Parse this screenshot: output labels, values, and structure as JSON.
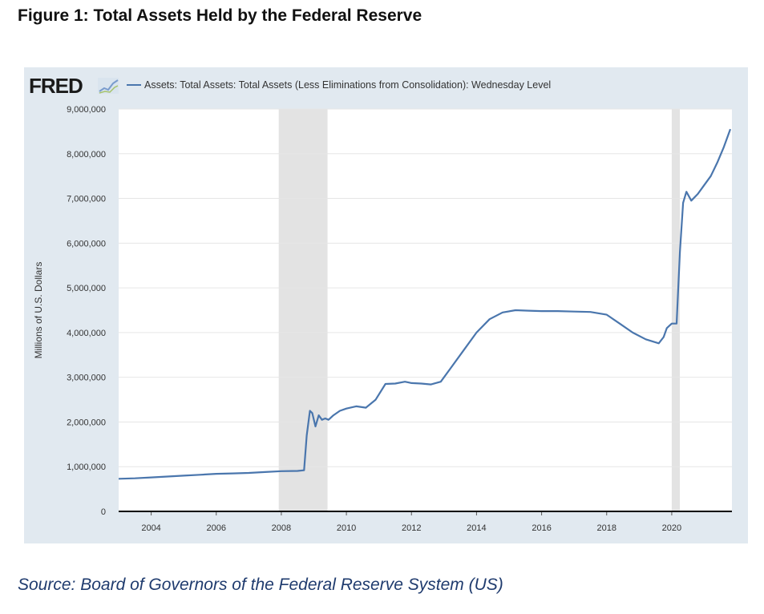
{
  "header": {
    "title": "Figure 1: Total Assets Held by the Federal Reserve"
  },
  "footer": {
    "source": "Source: Board of Governors of the Federal Reserve System (US)"
  },
  "logo": {
    "text": "FRED",
    "icon": "fred-graph-icon"
  },
  "colors": {
    "line": "#4a76ad",
    "panel": "#e1e9f0",
    "plot": "#ffffff",
    "recession": "#e3e3e3",
    "grid": "#e6e6e6",
    "text": "#333333"
  },
  "chart_data": {
    "type": "line",
    "title": "",
    "xlabel": "",
    "ylabel": "Millions of U.S. Dollars",
    "xlim": [
      2003.0,
      2021.85
    ],
    "ylim": [
      0,
      9000000
    ],
    "grid": true,
    "legend_position": "top-left",
    "x_ticks": [
      "2004",
      "2006",
      "2008",
      "2010",
      "2012",
      "2014",
      "2016",
      "2018",
      "2020"
    ],
    "y_ticks": [
      "0",
      "1,000,000",
      "2,000,000",
      "3,000,000",
      "4,000,000",
      "5,000,000",
      "6,000,000",
      "7,000,000",
      "8,000,000",
      "9,000,000"
    ],
    "recessions": [
      [
        2007.92,
        2009.42
      ],
      [
        2020.0,
        2020.25
      ]
    ],
    "series": [
      {
        "name": "Assets: Total Assets: Total Assets (Less Eliminations from Consolidation): Wednesday Level",
        "x": [
          2003.0,
          2003.5,
          2004.0,
          2004.5,
          2005.0,
          2005.5,
          2006.0,
          2006.5,
          2007.0,
          2007.5,
          2008.0,
          2008.5,
          2008.7,
          2008.78,
          2008.88,
          2008.95,
          2009.05,
          2009.15,
          2009.25,
          2009.35,
          2009.45,
          2009.6,
          2009.8,
          2010.0,
          2010.3,
          2010.6,
          2010.9,
          2011.2,
          2011.5,
          2011.8,
          2012.0,
          2012.3,
          2012.6,
          2012.9,
          2013.2,
          2013.6,
          2014.0,
          2014.4,
          2014.8,
          2015.2,
          2015.6,
          2016.0,
          2016.5,
          2017.0,
          2017.5,
          2018.0,
          2018.4,
          2018.8,
          2019.2,
          2019.6,
          2019.75,
          2019.85,
          2020.0,
          2020.15,
          2020.25,
          2020.35,
          2020.45,
          2020.6,
          2020.8,
          2021.0,
          2021.2,
          2021.4,
          2021.6,
          2021.8
        ],
        "values": [
          730000,
          740000,
          760000,
          780000,
          800000,
          820000,
          840000,
          850000,
          860000,
          880000,
          900000,
          905000,
          920000,
          1700000,
          2250000,
          2200000,
          1900000,
          2150000,
          2050000,
          2080000,
          2050000,
          2150000,
          2250000,
          2300000,
          2350000,
          2320000,
          2500000,
          2850000,
          2860000,
          2900000,
          2870000,
          2860000,
          2840000,
          2900000,
          3200000,
          3600000,
          4000000,
          4300000,
          4450000,
          4500000,
          4490000,
          4480000,
          4480000,
          4470000,
          4460000,
          4400000,
          4200000,
          4000000,
          3850000,
          3760000,
          3900000,
          4100000,
          4200000,
          4200000,
          5800000,
          6900000,
          7150000,
          6950000,
          7100000,
          7300000,
          7500000,
          7800000,
          8150000,
          8550000
        ]
      }
    ]
  }
}
